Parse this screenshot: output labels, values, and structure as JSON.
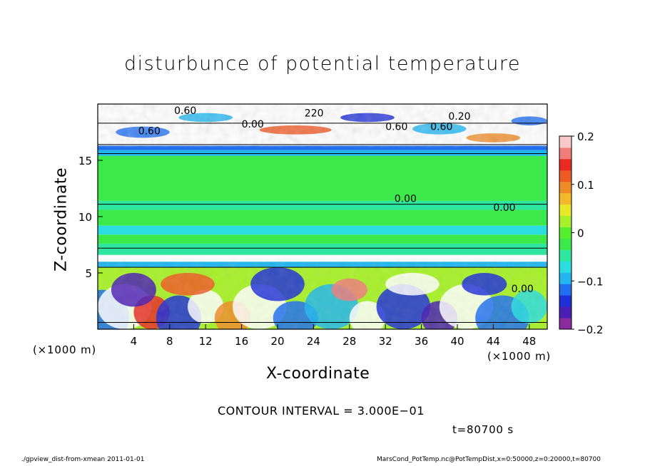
{
  "chart_data": {
    "type": "heatmap",
    "title": "disturbunce of potential temperature",
    "xlabel": "X-coordinate",
    "ylabel": "Z-coordinate",
    "x_unit": "(×1000 m)",
    "y_unit": "(×1000 m)",
    "xlim": [
      0,
      50
    ],
    "ylim": [
      0,
      20
    ],
    "x_ticks": [
      4,
      8,
      12,
      16,
      20,
      24,
      28,
      32,
      36,
      40,
      44,
      48
    ],
    "y_ticks": [
      5,
      10,
      15
    ],
    "colorbar": {
      "range": [
        -0.2,
        0.2
      ],
      "ticks": [
        0.2,
        0.1,
        0,
        -0.1,
        -0.2
      ],
      "tick_labels": [
        "0.2",
        "0.1",
        "0",
        "−0.1",
        "−0.2"
      ],
      "colors": [
        "#8a2ca0",
        "#4b1fb5",
        "#2030d8",
        "#1f6ff0",
        "#22b6ee",
        "#2bdde0",
        "#2fe6a0",
        "#3ce94a",
        "#55ef2e",
        "#a8f02c",
        "#e8e82a",
        "#f5b82a",
        "#f08c28",
        "#ee5a24",
        "#e82a22",
        "#f07c7c",
        "#f9c8c8"
      ]
    },
    "contour_labels": [
      "0.60",
      "220",
      "0.60",
      "0.00",
      "0.60",
      "0.60",
      "0.20",
      "0.00",
      "0.00",
      "0.00"
    ],
    "contour_interval": "CONTOUR INTERVAL = 3.000E−01",
    "time": "t=80700 s"
  },
  "footer": {
    "left": "./gpview_dist-from-xmean   2011-01-01",
    "right": "MarsCond_PotTemp.nc@PotTempDist,x=0:50000,z=0:20000,t=80700"
  }
}
